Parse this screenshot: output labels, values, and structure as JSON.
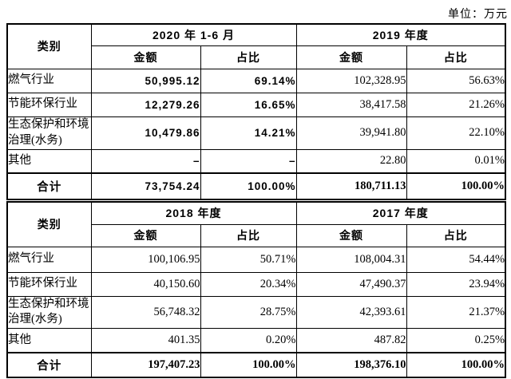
{
  "unit_label": "单位：万元",
  "colors": {
    "text": "#000000",
    "border": "#000000",
    "background": "#ffffff"
  },
  "tables": [
    {
      "category_header": "类别",
      "period_headers": [
        "2020 年 1-6 月",
        "2019 年度"
      ],
      "sub_headers": [
        "金额",
        "占比",
        "金额",
        "占比"
      ],
      "rows": [
        {
          "label": "燃气行业",
          "values": [
            "50,995.12",
            "69.14%",
            "102,328.95",
            "56.63%"
          ]
        },
        {
          "label": "节能环保行业",
          "values": [
            "12,279.26",
            "16.65%",
            "38,417.58",
            "21.26%"
          ]
        },
        {
          "label": "生态保护和环境治理(水务)",
          "values": [
            "10,479.86",
            "14.21%",
            "39,941.80",
            "22.10%"
          ]
        },
        {
          "label": "其他",
          "values": [
            "–",
            "–",
            "22.80",
            "0.01%"
          ]
        },
        {
          "label": "合计",
          "values": [
            "73,754.24",
            "100.00%",
            "180,711.13",
            "100.00%"
          ]
        }
      ]
    },
    {
      "category_header": "类别",
      "period_headers": [
        "2018 年度",
        "2017 年度"
      ],
      "sub_headers": [
        "金额",
        "占比",
        "金额",
        "占比"
      ],
      "rows": [
        {
          "label": "燃气行业",
          "values": [
            "100,106.95",
            "50.71%",
            "108,004.31",
            "54.44%"
          ]
        },
        {
          "label": "节能环保行业",
          "values": [
            "40,150.60",
            "20.34%",
            "47,490.37",
            "23.94%"
          ]
        },
        {
          "label": "生态保护和环境治理(水务)",
          "values": [
            "56,748.32",
            "28.75%",
            "42,393.61",
            "21.37%"
          ]
        },
        {
          "label": "其他",
          "values": [
            "401.35",
            "0.20%",
            "487.82",
            "0.25%"
          ]
        },
        {
          "label": "合计",
          "values": [
            "197,407.23",
            "100.00%",
            "198,376.10",
            "100.00%"
          ]
        }
      ]
    }
  ]
}
